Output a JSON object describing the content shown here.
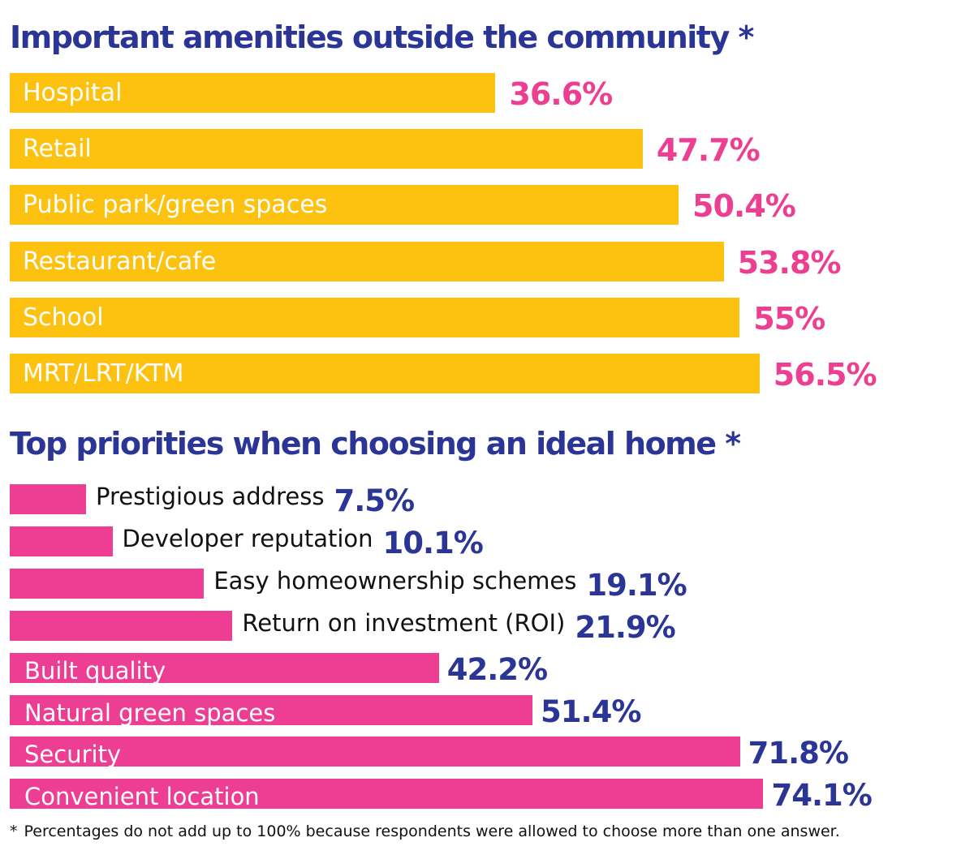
{
  "colors": {
    "title": "#2b3595",
    "amenities_bar": "#fdc10f",
    "amenities_value": "#ec3f92",
    "priorities_bar": "#ee3e93",
    "priorities_value": "#2b3595",
    "bar_label_inside": "#ffffff",
    "bar_label_outside": "#111111"
  },
  "footnote": {
    "mark": "*",
    "text": "Percentages do not add up to 100% because respondents were allowed to choose more than one answer."
  },
  "chart_data": [
    {
      "type": "bar",
      "orientation": "horizontal",
      "title": "Important amenities outside the community *",
      "categories": [
        "Hospital",
        "Retail",
        "Public park/green spaces",
        "Restaurant/cafe",
        "School",
        "MRT/LRT/KTM"
      ],
      "values": [
        36.6,
        47.7,
        50.4,
        53.8,
        55,
        56.5
      ],
      "value_labels": [
        "36.6%",
        "47.7%",
        "50.4%",
        "53.8%",
        "55%",
        "56.5%"
      ],
      "unit": "%",
      "grid": false,
      "axes_shown": false
    },
    {
      "type": "bar",
      "orientation": "horizontal",
      "title": "Top priorities when choosing an ideal home *",
      "categories": [
        "Prestigious address",
        "Developer reputation",
        "Easy homeownership schemes",
        "Return on investment (ROI)",
        "Built quality",
        "Natural green spaces",
        "Security",
        "Convenient location"
      ],
      "values": [
        7.5,
        10.1,
        19.1,
        21.9,
        42.2,
        51.4,
        71.8,
        74.1
      ],
      "value_labels": [
        "7.5%",
        "10.1%",
        "19.1%",
        "21.9%",
        "42.2%",
        "51.4%",
        "71.8%",
        "74.1%"
      ],
      "unit": "%",
      "grid": false,
      "axes_shown": false
    }
  ]
}
